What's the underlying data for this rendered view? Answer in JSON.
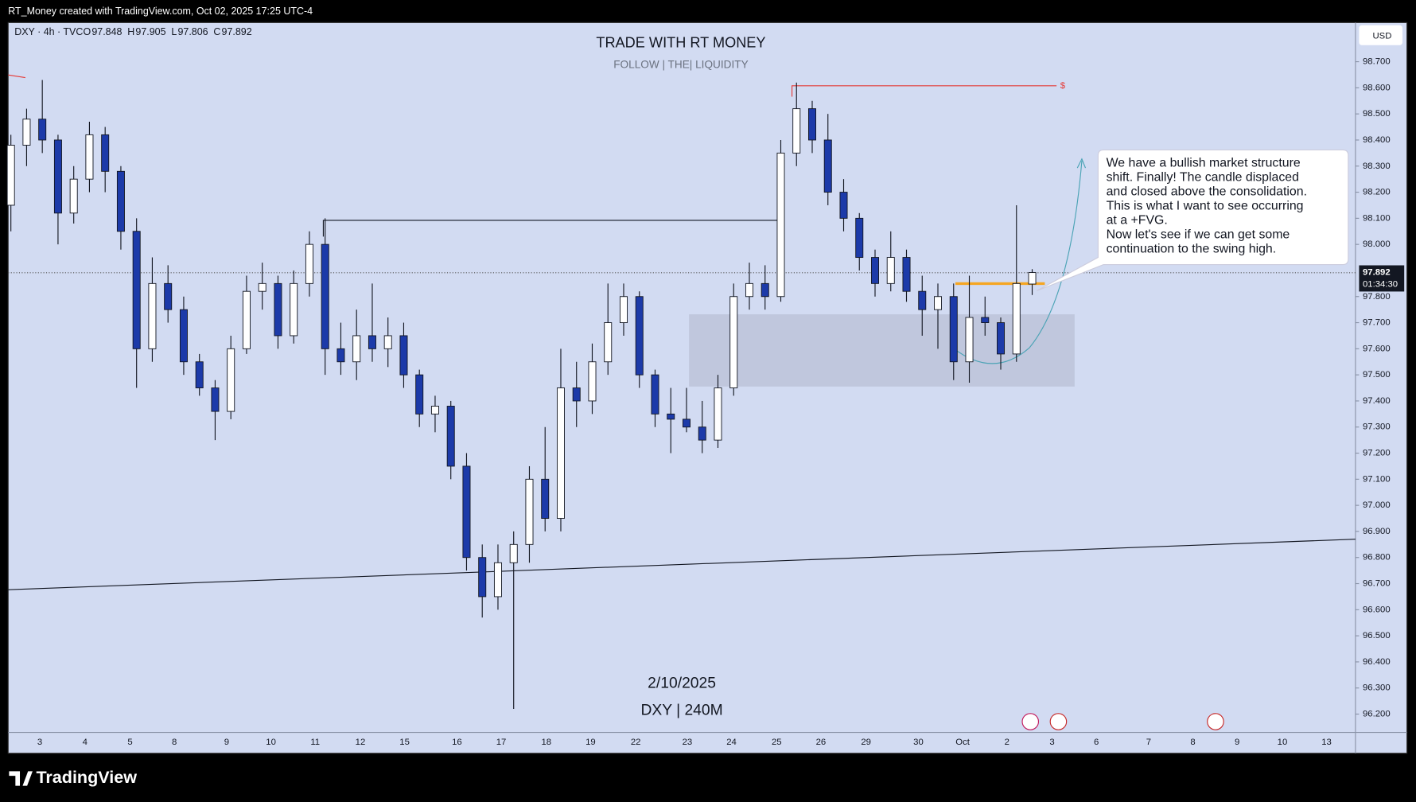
{
  "header": {
    "credit": "RT_Money created with TradingView.com, Oct 02, 2025 17:25 UTC-4",
    "brand": "TradingView"
  },
  "chart_data": {
    "type": "candlestick",
    "symbol": "DXY · 4h · TVC",
    "ohlc_labels": [
      "O",
      "H",
      "L",
      "C"
    ],
    "title": "TRADE WITH RT MONEY",
    "subtitle": "FOLLOW  |  THE|  LIQUIDITY",
    "annotations": [
      "2/10/2025",
      "DXY | 240M"
    ],
    "callout": [
      "We have a bullish market structure",
      "shift.  Finally!  The candle displaced",
      "and closed above the consolidation.",
      "This is what I want to see occurring",
      "at a +FVG.",
      "Now let's see if we can get some",
      "continuation to the swing high."
    ],
    "target_label": "$",
    "currency": "USD",
    "countdown": "01:34:30",
    "x_axis_labels": [
      "3",
      "4",
      "5",
      "8",
      "9",
      "10",
      "11",
      "12",
      "15",
      "16",
      "17",
      "18",
      "19",
      "22",
      "23",
      "24",
      "25",
      "26",
      "29",
      "30",
      "Oct",
      "2",
      "3",
      "6",
      "7",
      "8",
      "9",
      "10",
      "13"
    ],
    "candles": [
      [
        98.15,
        98.42,
        98.05,
        98.38
      ],
      [
        98.38,
        98.52,
        98.3,
        98.48
      ],
      [
        98.48,
        98.63,
        98.35,
        98.4
      ],
      [
        98.4,
        98.42,
        98.0,
        98.12
      ],
      [
        98.12,
        98.3,
        98.08,
        98.25
      ],
      [
        98.25,
        98.47,
        98.2,
        98.42
      ],
      [
        98.42,
        98.45,
        98.2,
        98.28
      ],
      [
        98.28,
        98.3,
        97.98,
        98.05
      ],
      [
        98.05,
        98.1,
        97.45,
        97.6
      ],
      [
        97.6,
        97.95,
        97.55,
        97.85
      ],
      [
        97.85,
        97.92,
        97.7,
        97.75
      ],
      [
        97.75,
        97.8,
        97.5,
        97.55
      ],
      [
        97.55,
        97.58,
        97.42,
        97.45
      ],
      [
        97.45,
        97.48,
        97.25,
        97.36
      ],
      [
        97.36,
        97.65,
        97.33,
        97.6
      ],
      [
        97.6,
        97.88,
        97.58,
        97.82
      ],
      [
        97.82,
        97.93,
        97.75,
        97.85
      ],
      [
        97.85,
        97.88,
        97.6,
        97.65
      ],
      [
        97.65,
        97.9,
        97.62,
        97.85
      ],
      [
        97.85,
        98.05,
        97.8,
        98.0
      ],
      [
        98.0,
        98.1,
        97.5,
        97.6
      ],
      [
        97.6,
        97.7,
        97.5,
        97.55
      ],
      [
        97.55,
        97.75,
        97.48,
        97.65
      ],
      [
        97.65,
        97.85,
        97.55,
        97.6
      ],
      [
        97.6,
        97.72,
        97.53,
        97.65
      ],
      [
        97.65,
        97.7,
        97.45,
        97.5
      ],
      [
        97.5,
        97.52,
        97.3,
        97.35
      ],
      [
        97.35,
        97.42,
        97.28,
        97.38
      ],
      [
        97.38,
        97.4,
        97.1,
        97.15
      ],
      [
        97.15,
        97.2,
        96.75,
        96.8
      ],
      [
        96.8,
        96.85,
        96.57,
        96.65
      ],
      [
        96.65,
        96.85,
        96.6,
        96.78
      ],
      [
        96.78,
        96.9,
        96.22,
        96.85
      ],
      [
        96.85,
        97.15,
        96.78,
        97.1
      ],
      [
        97.1,
        97.3,
        96.9,
        96.95
      ],
      [
        96.95,
        97.6,
        96.9,
        97.45
      ],
      [
        97.45,
        97.55,
        97.3,
        97.4
      ],
      [
        97.4,
        97.62,
        97.35,
        97.55
      ],
      [
        97.55,
        97.85,
        97.5,
        97.7
      ],
      [
        97.7,
        97.85,
        97.65,
        97.8
      ],
      [
        97.8,
        97.82,
        97.45,
        97.5
      ],
      [
        97.5,
        97.52,
        97.3,
        97.35
      ],
      [
        97.35,
        97.45,
        97.2,
        97.33
      ],
      [
        97.33,
        97.45,
        97.28,
        97.3
      ],
      [
        97.3,
        97.4,
        97.2,
        97.25
      ],
      [
        97.25,
        97.5,
        97.22,
        97.45
      ],
      [
        97.45,
        97.85,
        97.42,
        97.8
      ],
      [
        97.8,
        97.93,
        97.75,
        97.85
      ],
      [
        97.85,
        97.92,
        97.75,
        97.8
      ],
      [
        97.8,
        98.4,
        97.78,
        98.35
      ],
      [
        98.35,
        98.62,
        98.3,
        98.52
      ],
      [
        98.52,
        98.55,
        98.35,
        98.4
      ],
      [
        98.4,
        98.5,
        98.15,
        98.2
      ],
      [
        98.2,
        98.25,
        98.05,
        98.1
      ],
      [
        98.1,
        98.12,
        97.9,
        97.95
      ],
      [
        97.95,
        97.98,
        97.8,
        97.85
      ],
      [
        97.85,
        98.05,
        97.82,
        97.95
      ],
      [
        97.95,
        97.98,
        97.78,
        97.82
      ],
      [
        97.82,
        97.88,
        97.65,
        97.75
      ],
      [
        97.75,
        97.85,
        97.6,
        97.8
      ],
      [
        97.8,
        97.85,
        97.48,
        97.55
      ],
      [
        97.55,
        97.88,
        97.47,
        97.72
      ],
      [
        97.72,
        97.8,
        97.65,
        97.7
      ],
      [
        97.7,
        97.72,
        97.52,
        97.58
      ],
      [
        97.58,
        98.15,
        97.55,
        97.85
      ],
      [
        97.848,
        97.905,
        97.806,
        97.892
      ]
    ],
    "bull_color": "#ffffff",
    "bear_color": "#1c3aa9",
    "wick_color": "#131722",
    "ylim": [
      96.05,
      98.85
    ],
    "yticks": [
      {
        "value": 96.2,
        "label": "96.200"
      },
      {
        "value": 96.3,
        "label": "96.300"
      },
      {
        "value": 96.4,
        "label": "96.400"
      },
      {
        "value": 96.5,
        "label": "96.500"
      },
      {
        "value": 96.6,
        "label": "96.600"
      },
      {
        "value": 96.7,
        "label": "96.700"
      },
      {
        "value": 96.8,
        "label": "96.800"
      },
      {
        "value": 96.9,
        "label": "96.900"
      },
      {
        "value": 97.0,
        "label": "97.000"
      },
      {
        "value": 97.1,
        "label": "97.100"
      },
      {
        "value": 97.2,
        "label": "97.200"
      },
      {
        "value": 97.3,
        "label": "97.300"
      },
      {
        "value": 97.4,
        "label": "97.400"
      },
      {
        "value": 97.5,
        "label": "97.500"
      },
      {
        "value": 97.6,
        "label": "97.600"
      },
      {
        "value": 97.7,
        "label": "97.700"
      },
      {
        "value": 97.8,
        "label": "97.800"
      },
      {
        "value": 98.0,
        "label": "98.000"
      },
      {
        "value": 98.1,
        "label": "98.100"
      },
      {
        "value": 98.2,
        "label": "98.200"
      },
      {
        "value": 98.3,
        "label": "98.300"
      },
      {
        "value": 98.4,
        "label": "98.400"
      },
      {
        "value": 98.5,
        "label": "98.500"
      },
      {
        "value": 98.6,
        "label": "98.600"
      },
      {
        "value": 98.7,
        "label": "98.700"
      }
    ],
    "grid": false
  }
}
